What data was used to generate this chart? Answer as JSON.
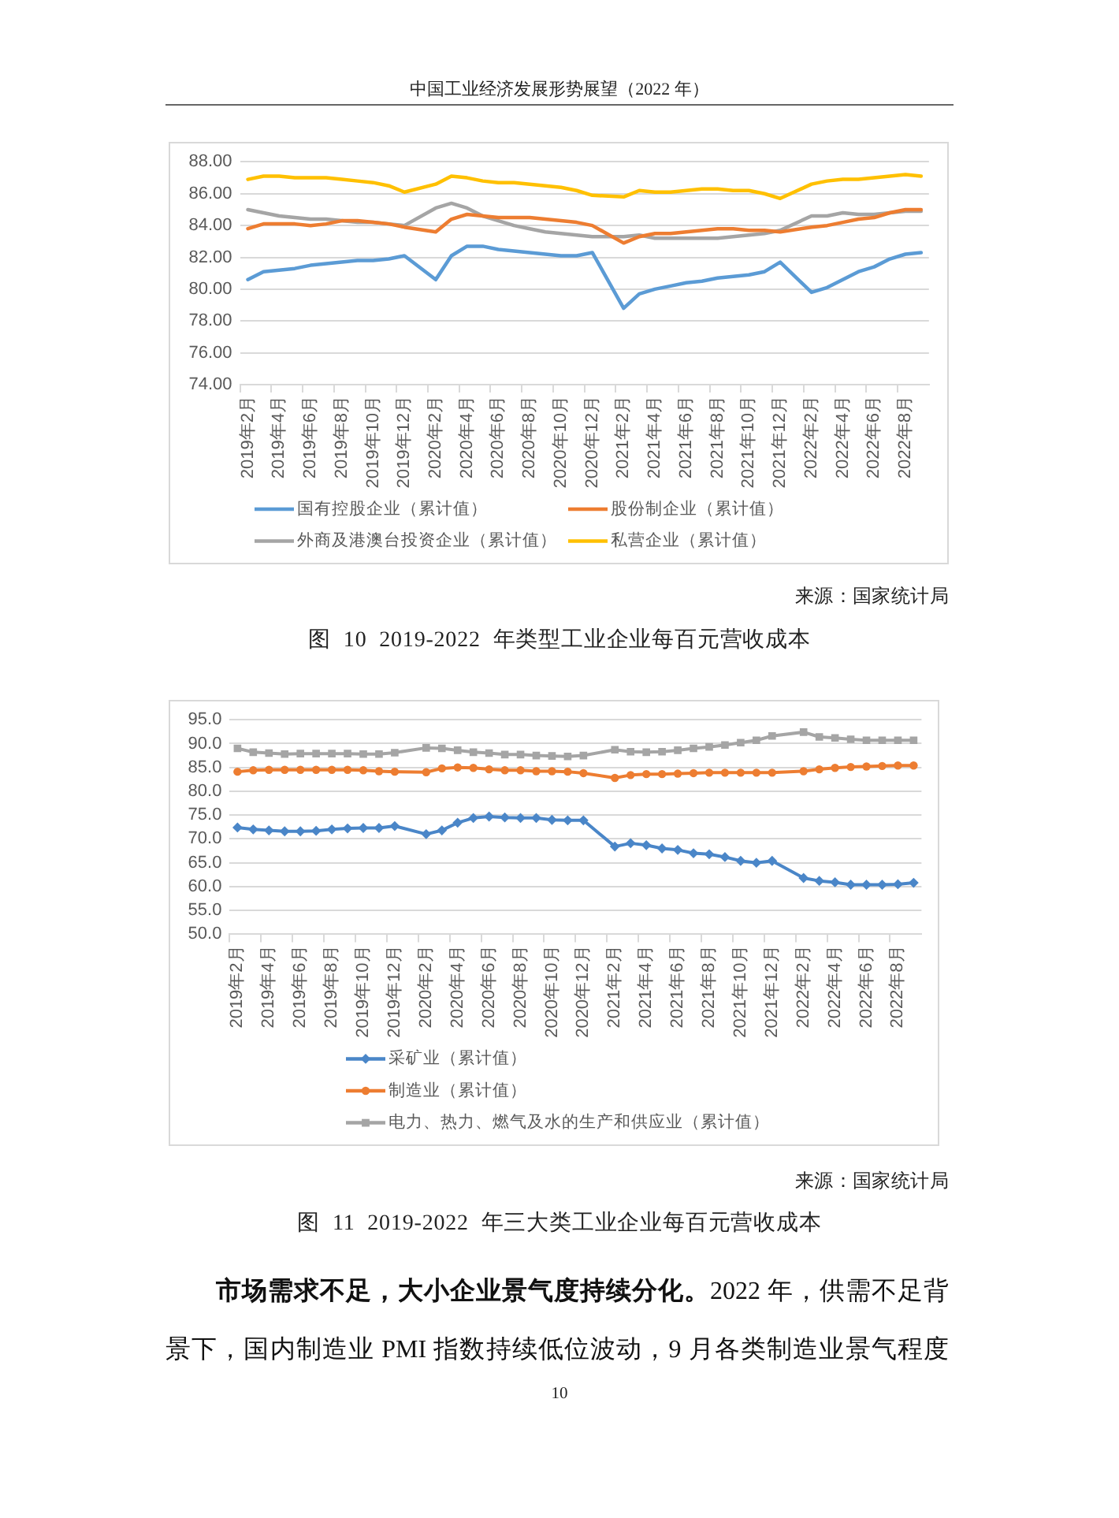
{
  "chart_data": [
    {
      "type": "line",
      "title": "图 10 2019-2022 年类型工业企业每百元营收成本",
      "annotations": [
        "中国工业经济发展形势展望（2022 年）",
        "来源：国家统计局"
      ],
      "categories": [
        "2019年2月",
        null,
        "2019年4月",
        null,
        "2019年6月",
        null,
        "2019年8月",
        null,
        "2019年10月",
        null,
        "2019年12月",
        null,
        "2020年2月",
        null,
        "2020年4月",
        null,
        "2020年6月",
        null,
        "2020年8月",
        null,
        "2020年10月",
        null,
        "2020年12月",
        null,
        "2021年2月",
        null,
        "2021年4月",
        null,
        "2021年6月",
        null,
        "2021年8月",
        null,
        "2021年10月",
        null,
        "2021年12月",
        null,
        "2022年2月",
        null,
        "2022年4月",
        null,
        "2022年6月",
        null,
        "2022年8月",
        null
      ],
      "series": [
        {
          "name": "国有控股企业（累计值）",
          "color": "#5b9bd5",
          "values": [
            80.6,
            81.1,
            81.2,
            81.3,
            81.5,
            81.6,
            81.7,
            81.8,
            81.8,
            81.9,
            82.1,
            null,
            80.6,
            82.1,
            82.7,
            82.7,
            82.5,
            82.4,
            82.3,
            82.2,
            82.1,
            82.1,
            82.3,
            null,
            78.8,
            79.7,
            80.0,
            80.2,
            80.4,
            80.5,
            80.7,
            80.8,
            80.9,
            81.1,
            81.7,
            null,
            79.8,
            80.1,
            80.6,
            81.1,
            81.4,
            81.9,
            82.2,
            82.3
          ]
        },
        {
          "name": "股份制企业（累计值）",
          "color": "#ed7d31",
          "values": [
            83.8,
            84.1,
            84.1,
            84.1,
            84.0,
            84.1,
            84.3,
            84.3,
            84.2,
            84.1,
            83.9,
            null,
            83.6,
            84.4,
            84.7,
            84.6,
            84.5,
            84.5,
            84.5,
            84.4,
            84.3,
            84.2,
            84.0,
            null,
            82.9,
            83.3,
            83.5,
            83.5,
            83.6,
            83.7,
            83.8,
            83.8,
            83.7,
            83.7,
            83.6,
            null,
            83.9,
            84.0,
            84.2,
            84.4,
            84.5,
            84.8,
            85.0,
            85.0
          ]
        },
        {
          "name": "外商及港澳台投资企业（累计值）",
          "color": "#a5a5a5",
          "values": [
            85.0,
            84.8,
            84.6,
            84.5,
            84.4,
            84.4,
            84.3,
            84.2,
            84.2,
            84.1,
            84.0,
            null,
            85.1,
            85.4,
            85.1,
            84.6,
            84.3,
            84.0,
            83.8,
            83.6,
            83.5,
            83.4,
            83.3,
            null,
            83.3,
            83.4,
            83.2,
            83.2,
            83.2,
            83.2,
            83.2,
            83.3,
            83.4,
            83.5,
            83.7,
            null,
            84.6,
            84.6,
            84.8,
            84.7,
            84.7,
            84.8,
            84.9,
            84.9
          ]
        },
        {
          "name": "私营企业（累计值）",
          "color": "#ffc000",
          "values": [
            86.9,
            87.1,
            87.1,
            87.0,
            87.0,
            87.0,
            86.9,
            86.8,
            86.7,
            86.5,
            86.1,
            null,
            86.6,
            87.1,
            87.0,
            86.8,
            86.7,
            86.7,
            86.6,
            86.5,
            86.4,
            86.2,
            85.9,
            null,
            85.8,
            86.2,
            86.1,
            86.1,
            86.2,
            86.3,
            86.3,
            86.2,
            86.2,
            86.0,
            85.7,
            null,
            86.6,
            86.8,
            86.9,
            86.9,
            87.0,
            87.1,
            87.2,
            87.1
          ]
        }
      ],
      "ylim": [
        74,
        88
      ],
      "yticks": [
        {
          "value": 74,
          "label": "74.00"
        },
        {
          "value": 76,
          "label": "76.00"
        },
        {
          "value": 78,
          "label": "78.00"
        },
        {
          "value": 80,
          "label": "80.00"
        },
        {
          "value": 82,
          "label": "82.00"
        },
        {
          "value": 84,
          "label": "84.00"
        },
        {
          "value": 86,
          "label": "86.00"
        },
        {
          "value": 88,
          "label": "88.00"
        }
      ],
      "grid": "y",
      "legend": "bottom"
    },
    {
      "type": "line",
      "title": "图 11 2019-2022 年三大类工业企业每百元营收成本",
      "annotations": [
        "来源：国家统计局",
        "市场需求不足，大小企业景气度持续分化。",
        "2022 年，供需不足背",
        "景下，国内制造业 PMI 指数持续低位波动，9 月各类制造业景气程度",
        "10"
      ],
      "categories": [
        "2019年2月",
        null,
        "2019年4月",
        null,
        "2019年6月",
        null,
        "2019年8月",
        null,
        "2019年10月",
        null,
        "2019年12月",
        null,
        "2020年2月",
        null,
        "2020年4月",
        null,
        "2020年6月",
        null,
        "2020年8月",
        null,
        "2020年10月",
        null,
        "2020年12月",
        null,
        "2021年2月",
        null,
        "2021年4月",
        null,
        "2021年6月",
        null,
        "2021年8月",
        null,
        "2021年10月",
        null,
        "2021年12月",
        null,
        "2022年2月",
        null,
        "2022年4月",
        null,
        "2022年6月",
        null,
        "2022年8月",
        null
      ],
      "series": [
        {
          "name": "采矿业（累计值）",
          "color": "#4a86c8",
          "marker": "diamond",
          "values": [
            72.4,
            72.0,
            71.8,
            71.6,
            71.6,
            71.7,
            72.0,
            72.2,
            72.3,
            72.3,
            72.7,
            null,
            71.0,
            71.8,
            73.4,
            74.4,
            74.7,
            74.5,
            74.4,
            74.4,
            74.0,
            73.9,
            73.9,
            null,
            68.4,
            69.1,
            68.7,
            68.0,
            67.7,
            67.0,
            66.8,
            66.2,
            65.4,
            65.0,
            65.4,
            null,
            61.8,
            61.2,
            60.9,
            60.4,
            60.4,
            60.4,
            60.5,
            60.8
          ]
        },
        {
          "name": "制造业（累计值）",
          "color": "#ed7d31",
          "marker": "circle",
          "values": [
            84.1,
            84.4,
            84.5,
            84.5,
            84.5,
            84.5,
            84.5,
            84.5,
            84.4,
            84.2,
            84.1,
            null,
            84.0,
            84.8,
            85.0,
            84.9,
            84.6,
            84.4,
            84.4,
            84.2,
            84.2,
            84.1,
            83.8,
            null,
            82.8,
            83.4,
            83.6,
            83.6,
            83.7,
            83.8,
            83.9,
            83.9,
            83.9,
            83.9,
            83.9,
            null,
            84.2,
            84.6,
            84.9,
            85.1,
            85.2,
            85.3,
            85.4,
            85.4
          ]
        },
        {
          "name": "电力、热力、燃气及水的生产和供应业（累计值）",
          "color": "#a5a5a5",
          "marker": "square",
          "values": [
            89.0,
            88.2,
            88.0,
            87.8,
            87.9,
            87.9,
            87.9,
            87.9,
            87.8,
            87.8,
            88.1,
            null,
            89.1,
            89.0,
            88.6,
            88.2,
            88.0,
            87.7,
            87.7,
            87.5,
            87.4,
            87.3,
            87.5,
            null,
            88.7,
            88.3,
            88.2,
            88.3,
            88.6,
            89.0,
            89.3,
            89.7,
            90.2,
            90.7,
            91.6,
            null,
            92.4,
            91.4,
            91.2,
            90.9,
            90.7,
            90.7,
            90.7,
            90.7
          ]
        }
      ],
      "ylim": [
        50,
        95
      ],
      "yticks": [
        {
          "value": 50,
          "label": "50.0"
        },
        {
          "value": 55,
          "label": "55.0"
        },
        {
          "value": 60,
          "label": "60.0"
        },
        {
          "value": 65,
          "label": "65.0"
        },
        {
          "value": 70,
          "label": "70.0"
        },
        {
          "value": 75,
          "label": "75.0"
        },
        {
          "value": 80,
          "label": "80.0"
        },
        {
          "value": 85,
          "label": "85.0"
        },
        {
          "value": 90,
          "label": "90.0"
        },
        {
          "value": 95,
          "label": "95.0"
        }
      ],
      "grid": "y",
      "legend": "bottom"
    }
  ]
}
